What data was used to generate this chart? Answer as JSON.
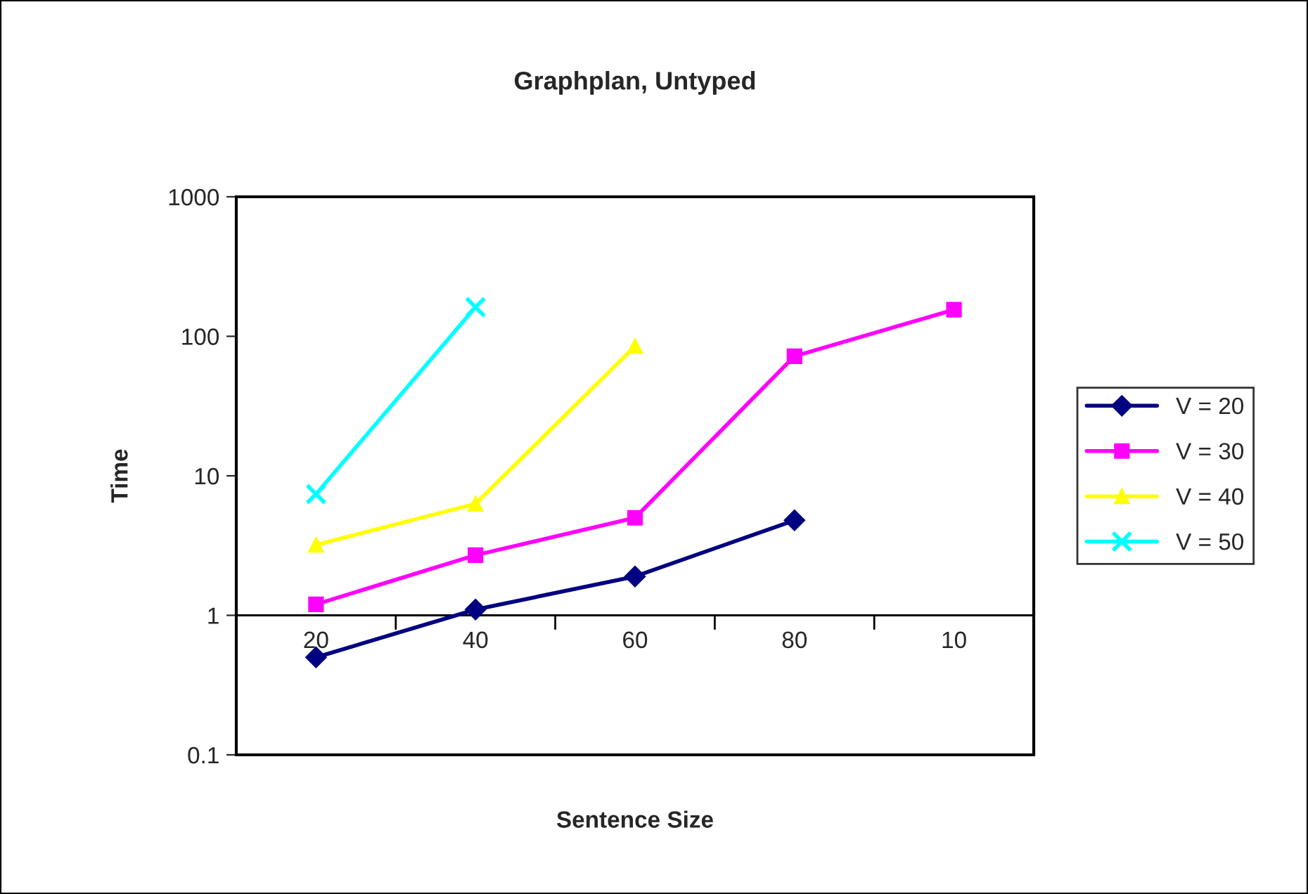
{
  "chart_data": {
    "type": "line",
    "title": "Graphplan, Untyped",
    "xlabel": "Sentence Size",
    "ylabel": "Time",
    "categories": [
      "20",
      "40",
      "60",
      "80",
      "10"
    ],
    "series": [
      {
        "name": "V = 20",
        "color": "#000080",
        "marker": "diamond",
        "values": [
          0.5,
          1.1,
          1.9,
          4.8,
          null
        ]
      },
      {
        "name": "V = 30",
        "color": "#ff00ff",
        "marker": "square",
        "values": [
          1.2,
          2.7,
          5,
          72,
          155
        ]
      },
      {
        "name": "V = 40",
        "color": "#ffff00",
        "marker": "triangle",
        "values": [
          3.2,
          6.3,
          85,
          null,
          null
        ]
      },
      {
        "name": "V = 50",
        "color": "#00ffff",
        "marker": "cross",
        "values": [
          7.4,
          162,
          null,
          null,
          null
        ]
      }
    ],
    "log": "y",
    "ylim": [
      0.1,
      1000
    ],
    "yticks": [
      0.1,
      1,
      10,
      100,
      1000
    ],
    "grid": false,
    "legend": "right",
    "line_style": "solid"
  }
}
